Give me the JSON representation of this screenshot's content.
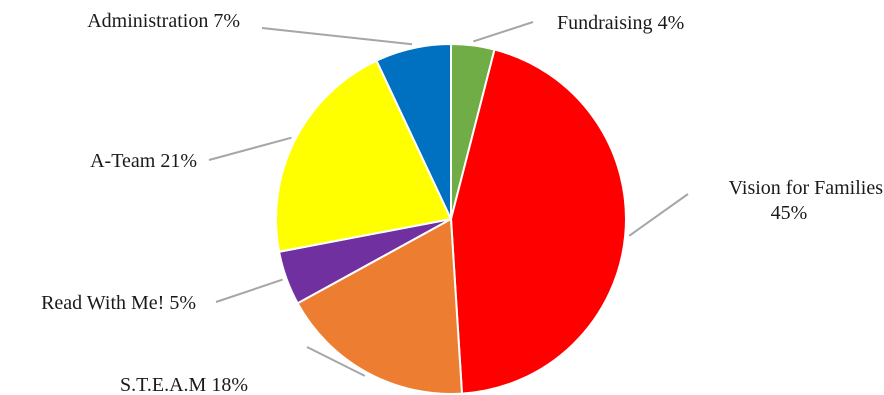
{
  "chart_data": {
    "type": "pie",
    "start_angle_deg": 0,
    "direction": "clockwise",
    "slices": [
      {
        "label": "Fundraising",
        "value_label": "4%",
        "value": 4,
        "color": "#70AD47"
      },
      {
        "label": "Vision for Families",
        "value_label": "45%",
        "value": 45,
        "color": "#FF0000"
      },
      {
        "label": "S.T.E.A.M",
        "value_label": "18%",
        "value": 18,
        "color": "#ED7D31"
      },
      {
        "label": "Read With Me!",
        "value_label": "5%",
        "value": 5,
        "color": "#7030A0"
      },
      {
        "label": "A-Team",
        "value_label": "21%",
        "value": 21,
        "color": "#FFFF00"
      },
      {
        "label": "Administration",
        "value_label": "7%",
        "value": 7,
        "color": "#0070C0"
      }
    ],
    "leader_line_color": "#A6A6A6",
    "slice_border_color": "#FFFFFF"
  }
}
